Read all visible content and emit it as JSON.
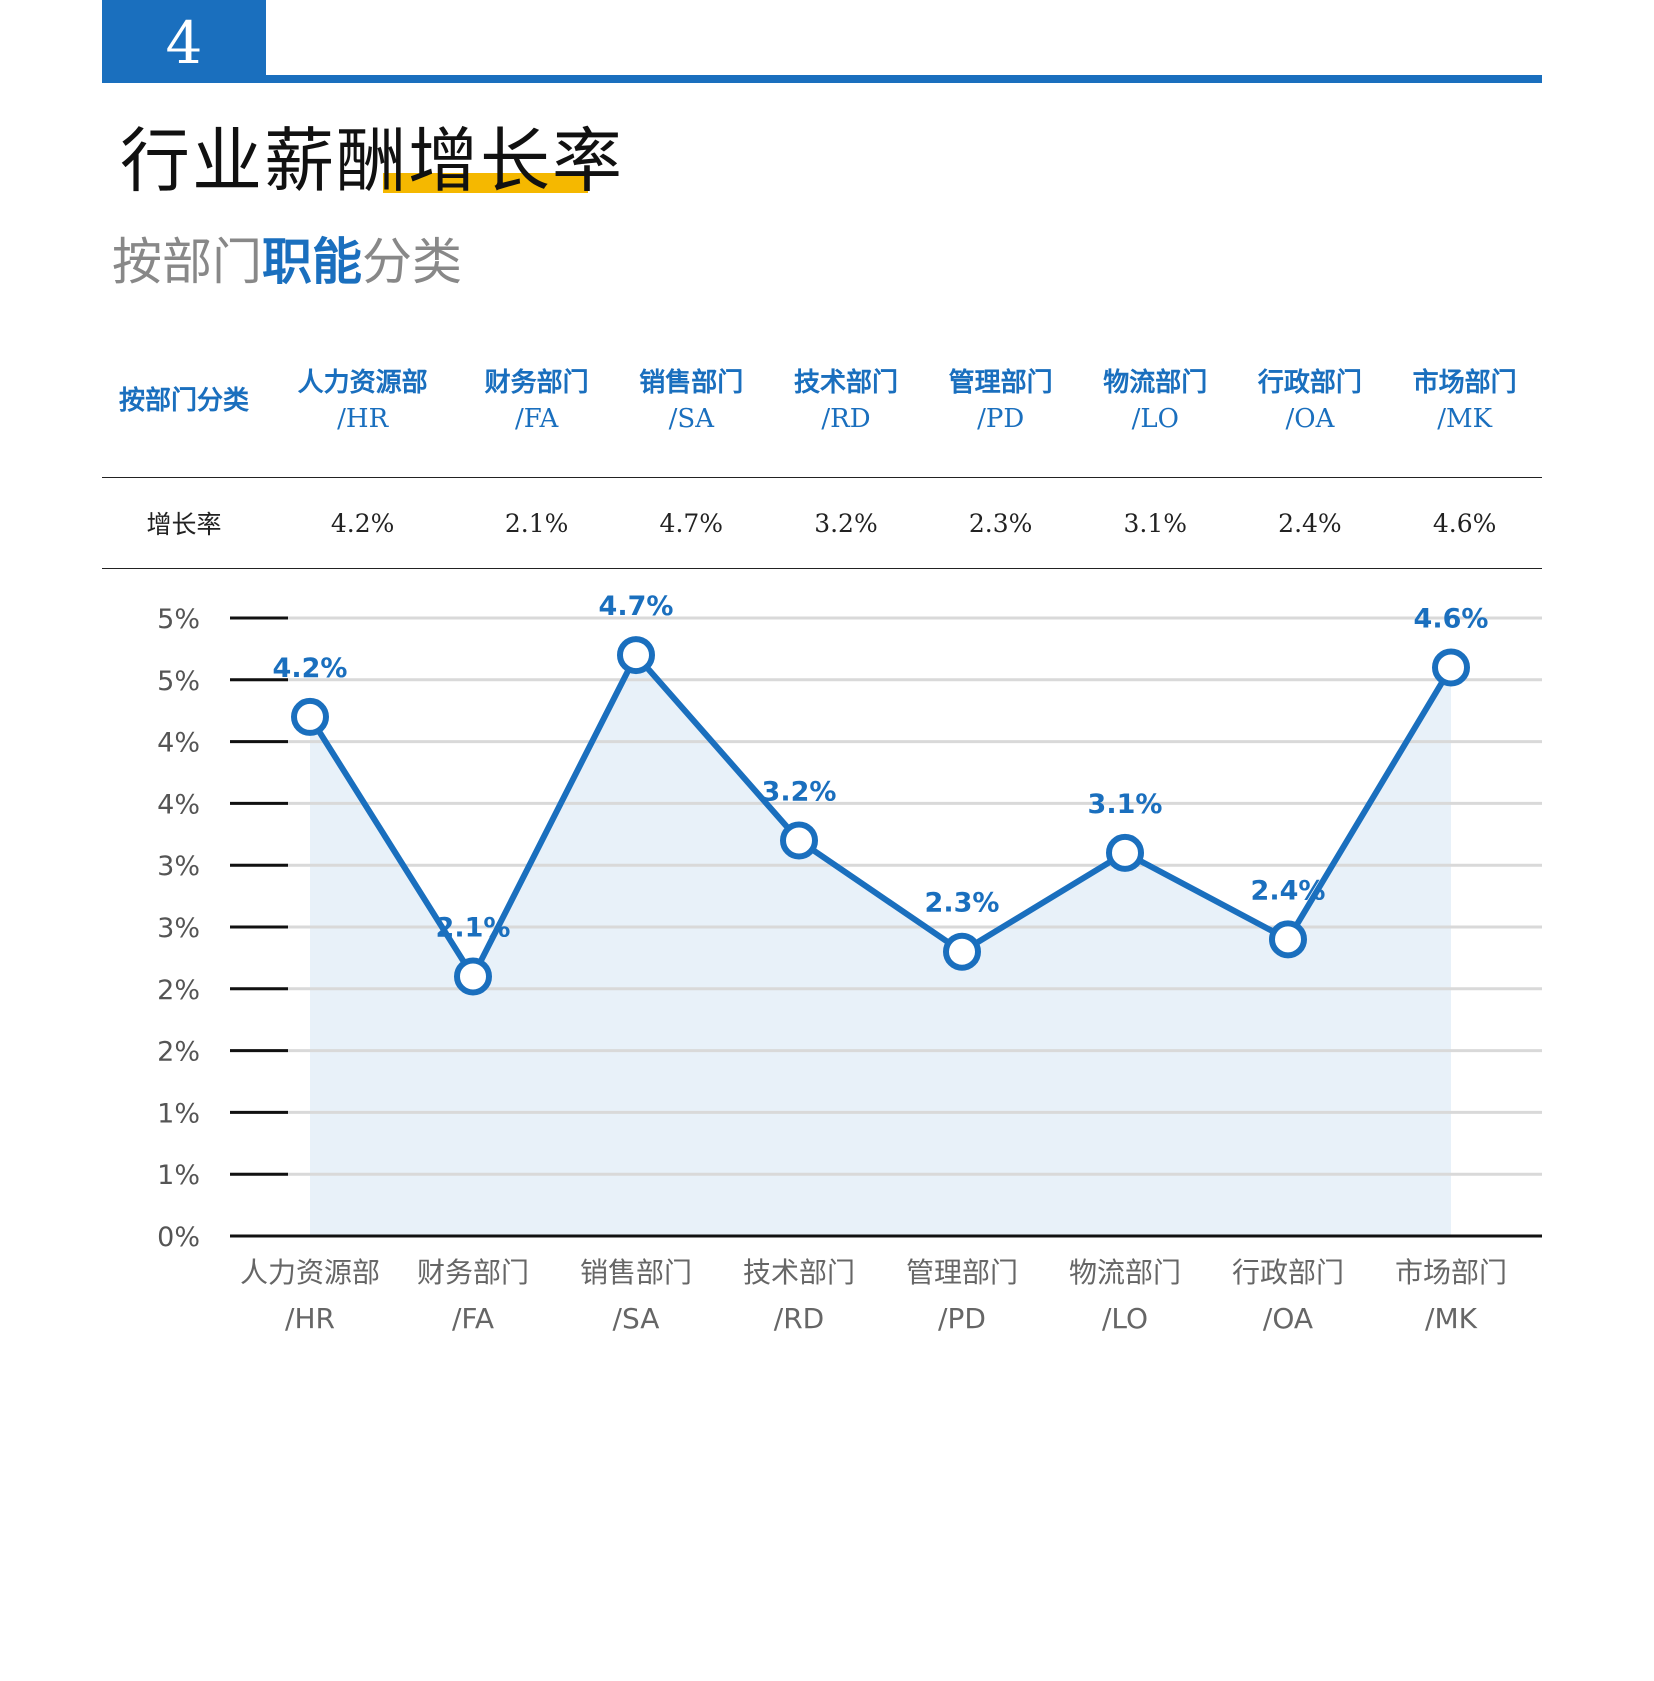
{
  "header": {
    "section_number": "4",
    "title": "行业薪酬增长率",
    "subtitle_pre": "按部门",
    "subtitle_highlight": "职能",
    "subtitle_post": "分类"
  },
  "table": {
    "header_label": "按部门分类",
    "row_label": "增长率",
    "columns": [
      {
        "name": "人力资源部",
        "code": "/HR",
        "value": "4.2%"
      },
      {
        "name": "财务部门",
        "code": "/FA",
        "value": "2.1%"
      },
      {
        "name": "销售部门",
        "code": "/SA",
        "value": "4.7%"
      },
      {
        "name": "技术部门",
        "code": "/RD",
        "value": "3.2%"
      },
      {
        "name": "管理部门",
        "code": "/PD",
        "value": "2.3%"
      },
      {
        "name": "物流部门",
        "code": "/LO",
        "value": "3.1%"
      },
      {
        "name": "行政部门",
        "code": "/OA",
        "value": "2.4%"
      },
      {
        "name": "市场部门",
        "code": "/MK",
        "value": "4.6%"
      }
    ]
  },
  "chart_data": {
    "type": "line",
    "categories": [
      "人力资源部/HR",
      "财务部门/FA",
      "销售部门/SA",
      "技术部门/RD",
      "管理部门/PD",
      "物流部门/LO",
      "行政部门/OA",
      "市场部门/MK"
    ],
    "category_lines": [
      [
        "人力资源部",
        "/HR"
      ],
      [
        "财务部门",
        "/FA"
      ],
      [
        "销售部门",
        "/SA"
      ],
      [
        "技术部门",
        "/RD"
      ],
      [
        "管理部门",
        "/PD"
      ],
      [
        "物流部门",
        "/LO"
      ],
      [
        "行政部门",
        "/OA"
      ],
      [
        "市场部门",
        "/MK"
      ]
    ],
    "values": [
      4.2,
      2.1,
      4.7,
      3.2,
      2.3,
      3.1,
      2.4,
      4.6
    ],
    "data_labels": [
      "4.2%",
      "2.1%",
      "4.7%",
      "3.2%",
      "2.3%",
      "3.1%",
      "2.4%",
      "4.6%"
    ],
    "ylim": [
      0,
      5
    ],
    "ytick_values": [
      0,
      0.5,
      1,
      1.5,
      2,
      2.5,
      3,
      3.5,
      4,
      4.5,
      5
    ],
    "ytick_labels": [
      "0%",
      "1%",
      "1%",
      "2%",
      "2%",
      "3%",
      "3%",
      "4%",
      "4%",
      "5%",
      "5%"
    ],
    "grid": true,
    "fill_under_line": true,
    "colors": {
      "line": "#1a6fbe",
      "fill": "#e8f1f9",
      "grid": "#d9d9d9",
      "axis": "#111111"
    }
  }
}
